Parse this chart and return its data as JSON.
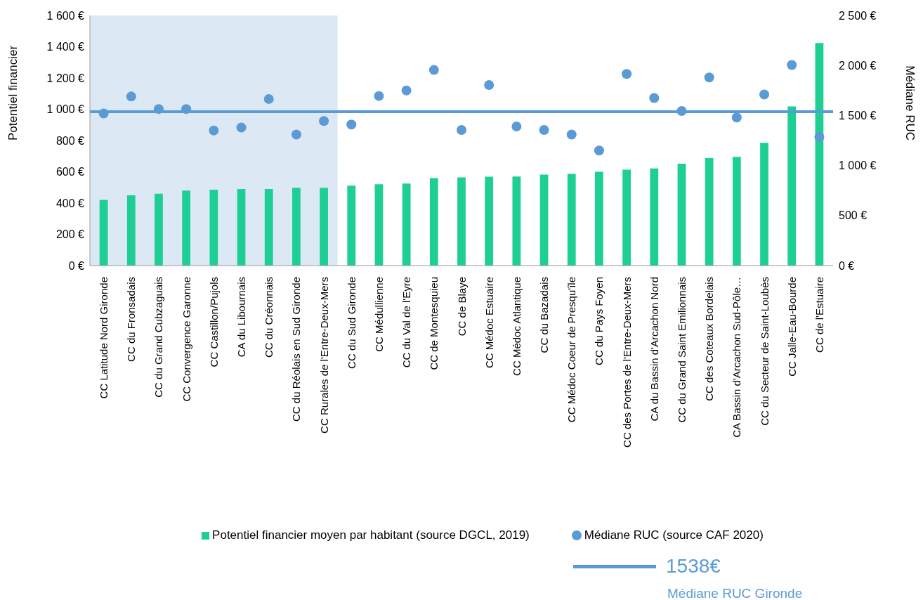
{
  "chart_data": {
    "type": "bar",
    "ylabel": "Potentiel financier",
    "y2label": "Médiane RUC",
    "categories": [
      "CC Latitude Nord Gironde",
      "CC du Fronsadais",
      "CC du Grand Cubzaguais",
      "CC Convergence Garonne",
      "CC Castillon/Pujols",
      "CA du Libournais",
      "CC du Créonnais",
      "CC du Réolais en Sud Gironde",
      "CC Rurales de l'Entre-Deux-Mers",
      "CC du Sud Gironde",
      "CC Médullienne",
      "CC du Val de l'Eyre",
      "CC de Montesquieu",
      "CC de Blaye",
      "CC Médoc Estuaire",
      "CC Médoc Atlantique",
      "CC du Bazadais",
      "CC Médoc Coeur de Presqu'île",
      "CC du Pays Foyen",
      "CC des Portes de l'Entre-Deux-Mers",
      "CA du Bassin d'Arcachon Nord",
      "CC du Grand Saint Emilionnais",
      "CC des Coteaux Bordelais",
      "CA Bassin d'Arcachon Sud-Pôle…",
      "CC du Secteur de Saint-Loubès",
      "CC Jalle-Eau-Bourde",
      "CC de l'Estuaire"
    ],
    "series": [
      {
        "name": "Potentiel financier moyen par habitant (source DGCL, 2019)",
        "color": "#1dcf95",
        "values": [
          420,
          450,
          460,
          480,
          485,
          490,
          490,
          498,
          498,
          511,
          520,
          525,
          560,
          564,
          568,
          570,
          582,
          586,
          600,
          613,
          621,
          652,
          688,
          696,
          785,
          1018,
          1424
        ]
      },
      {
        "name": "Médiane RUC (source CAF 2020)",
        "type": "scatter",
        "axis": "y2",
        "color": "#5b9bd5",
        "values": [
          1520,
          1690,
          1565,
          1565,
          1350,
          1380,
          1665,
          1310,
          1445,
          1410,
          1695,
          1750,
          1955,
          1355,
          1805,
          1390,
          1355,
          1310,
          1150,
          1915,
          1675,
          1545,
          1880,
          1480,
          1710,
          2005,
          1285
        ]
      }
    ],
    "ylim": [
      0,
      1600
    ],
    "yticks": [
      {
        "value": 0,
        "label": "0 €"
      },
      {
        "value": 200,
        "label": "200 €"
      },
      {
        "value": 400,
        "label": "400 €"
      },
      {
        "value": 600,
        "label": "600 €"
      },
      {
        "value": 800,
        "label": "800 €"
      },
      {
        "value": 1000,
        "label": "1 000 €"
      },
      {
        "value": 1200,
        "label": "1 200 €"
      },
      {
        "value": 1400,
        "label": "1 400 €"
      },
      {
        "value": 1600,
        "label": "1 600 €"
      }
    ],
    "y2lim": [
      0,
      2500
    ],
    "y2ticks": [
      {
        "value": 0,
        "label": "0 €"
      },
      {
        "value": 500,
        "label": "500 €"
      },
      {
        "value": 1000,
        "label": "1 000 €"
      },
      {
        "value": 1500,
        "label": "1 500 €"
      },
      {
        "value": 2000,
        "label": "2 000 €"
      },
      {
        "value": 2500,
        "label": "2 500 €"
      }
    ],
    "ref_lines": [
      {
        "axis": "y2",
        "value": 1538,
        "label": "1538€",
        "color": "#5b9bd5"
      }
    ],
    "bands": [
      {
        "axis": "x",
        "from": "CC Latitude Nord Gironde",
        "to": "CC Rurales de l'Entre-Deux-Mers",
        "color": "#dde8f5"
      }
    ],
    "annotations": [
      "Médiane RUC Gironde"
    ],
    "marker": "circle",
    "grid": false,
    "legend": "bottom"
  }
}
